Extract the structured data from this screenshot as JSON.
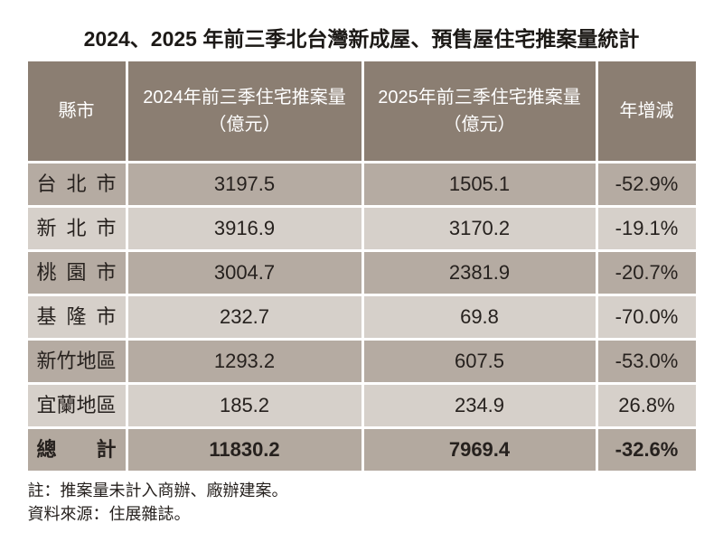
{
  "title": "2024、2025 年前三季北台灣新成屋、預售屋住宅推案量統計",
  "table": {
    "columns": [
      {
        "label": "縣市"
      },
      {
        "label": "2024年前三季住宅推案量",
        "unit": "（億元）"
      },
      {
        "label": "2025年前三季住宅推案量",
        "unit": "（億元）"
      },
      {
        "label": "年增減"
      }
    ],
    "rows": [
      {
        "city": "台北市",
        "y2024": "3197.5",
        "y2025": "1505.1",
        "yoy": "-52.9%"
      },
      {
        "city": "新北市",
        "y2024": "3916.9",
        "y2025": "3170.2",
        "yoy": "-19.1%"
      },
      {
        "city": "桃園市",
        "y2024": "3004.7",
        "y2025": "2381.9",
        "yoy": "-20.7%"
      },
      {
        "city": "基隆市",
        "y2024": "232.7",
        "y2025": "69.8",
        "yoy": "-70.0%"
      },
      {
        "city": "新竹地區",
        "y2024": "1293.2",
        "y2025": "607.5",
        "yoy": "-53.0%"
      },
      {
        "city": "宜蘭地區",
        "y2024": "185.2",
        "y2025": "234.9",
        "yoy": "26.8%"
      }
    ],
    "total": {
      "city": "總計",
      "y2024": "11830.2",
      "y2025": "7969.4",
      "yoy": "-32.6%"
    }
  },
  "notes": [
    "註：推案量未計入商辦、廠辦建案。",
    "資料來源：住展雜誌。"
  ],
  "colors": {
    "header_bg": "#8b7e72",
    "row_dark_bg": "#b5aba2",
    "row_light_bg": "#d6d0ca",
    "total_bg": "#b3a99f",
    "header_text": "#ffffff",
    "body_text": "#26211e",
    "divider": "#ffffff"
  },
  "chart_data": {
    "type": "table",
    "title": "2024、2025 年前三季北台灣新成屋、預售屋住宅推案量統計",
    "columns": [
      "縣市",
      "2024年前三季住宅推案量（億元）",
      "2025年前三季住宅推案量（億元）",
      "年增減"
    ],
    "rows": [
      [
        "台北市",
        3197.5,
        1505.1,
        "-52.9%"
      ],
      [
        "新北市",
        3916.9,
        3170.2,
        "-19.1%"
      ],
      [
        "桃園市",
        3004.7,
        2381.9,
        "-20.7%"
      ],
      [
        "基隆市",
        232.7,
        69.8,
        "-70.0%"
      ],
      [
        "新竹地區",
        1293.2,
        607.5,
        "-53.0%"
      ],
      [
        "宜蘭地區",
        185.2,
        234.9,
        "26.8%"
      ],
      [
        "總計",
        11830.2,
        7969.4,
        "-32.6%"
      ]
    ],
    "notes": [
      "註：推案量未計入商辦、廠辦建案。",
      "資料來源：住展雜誌。"
    ]
  }
}
